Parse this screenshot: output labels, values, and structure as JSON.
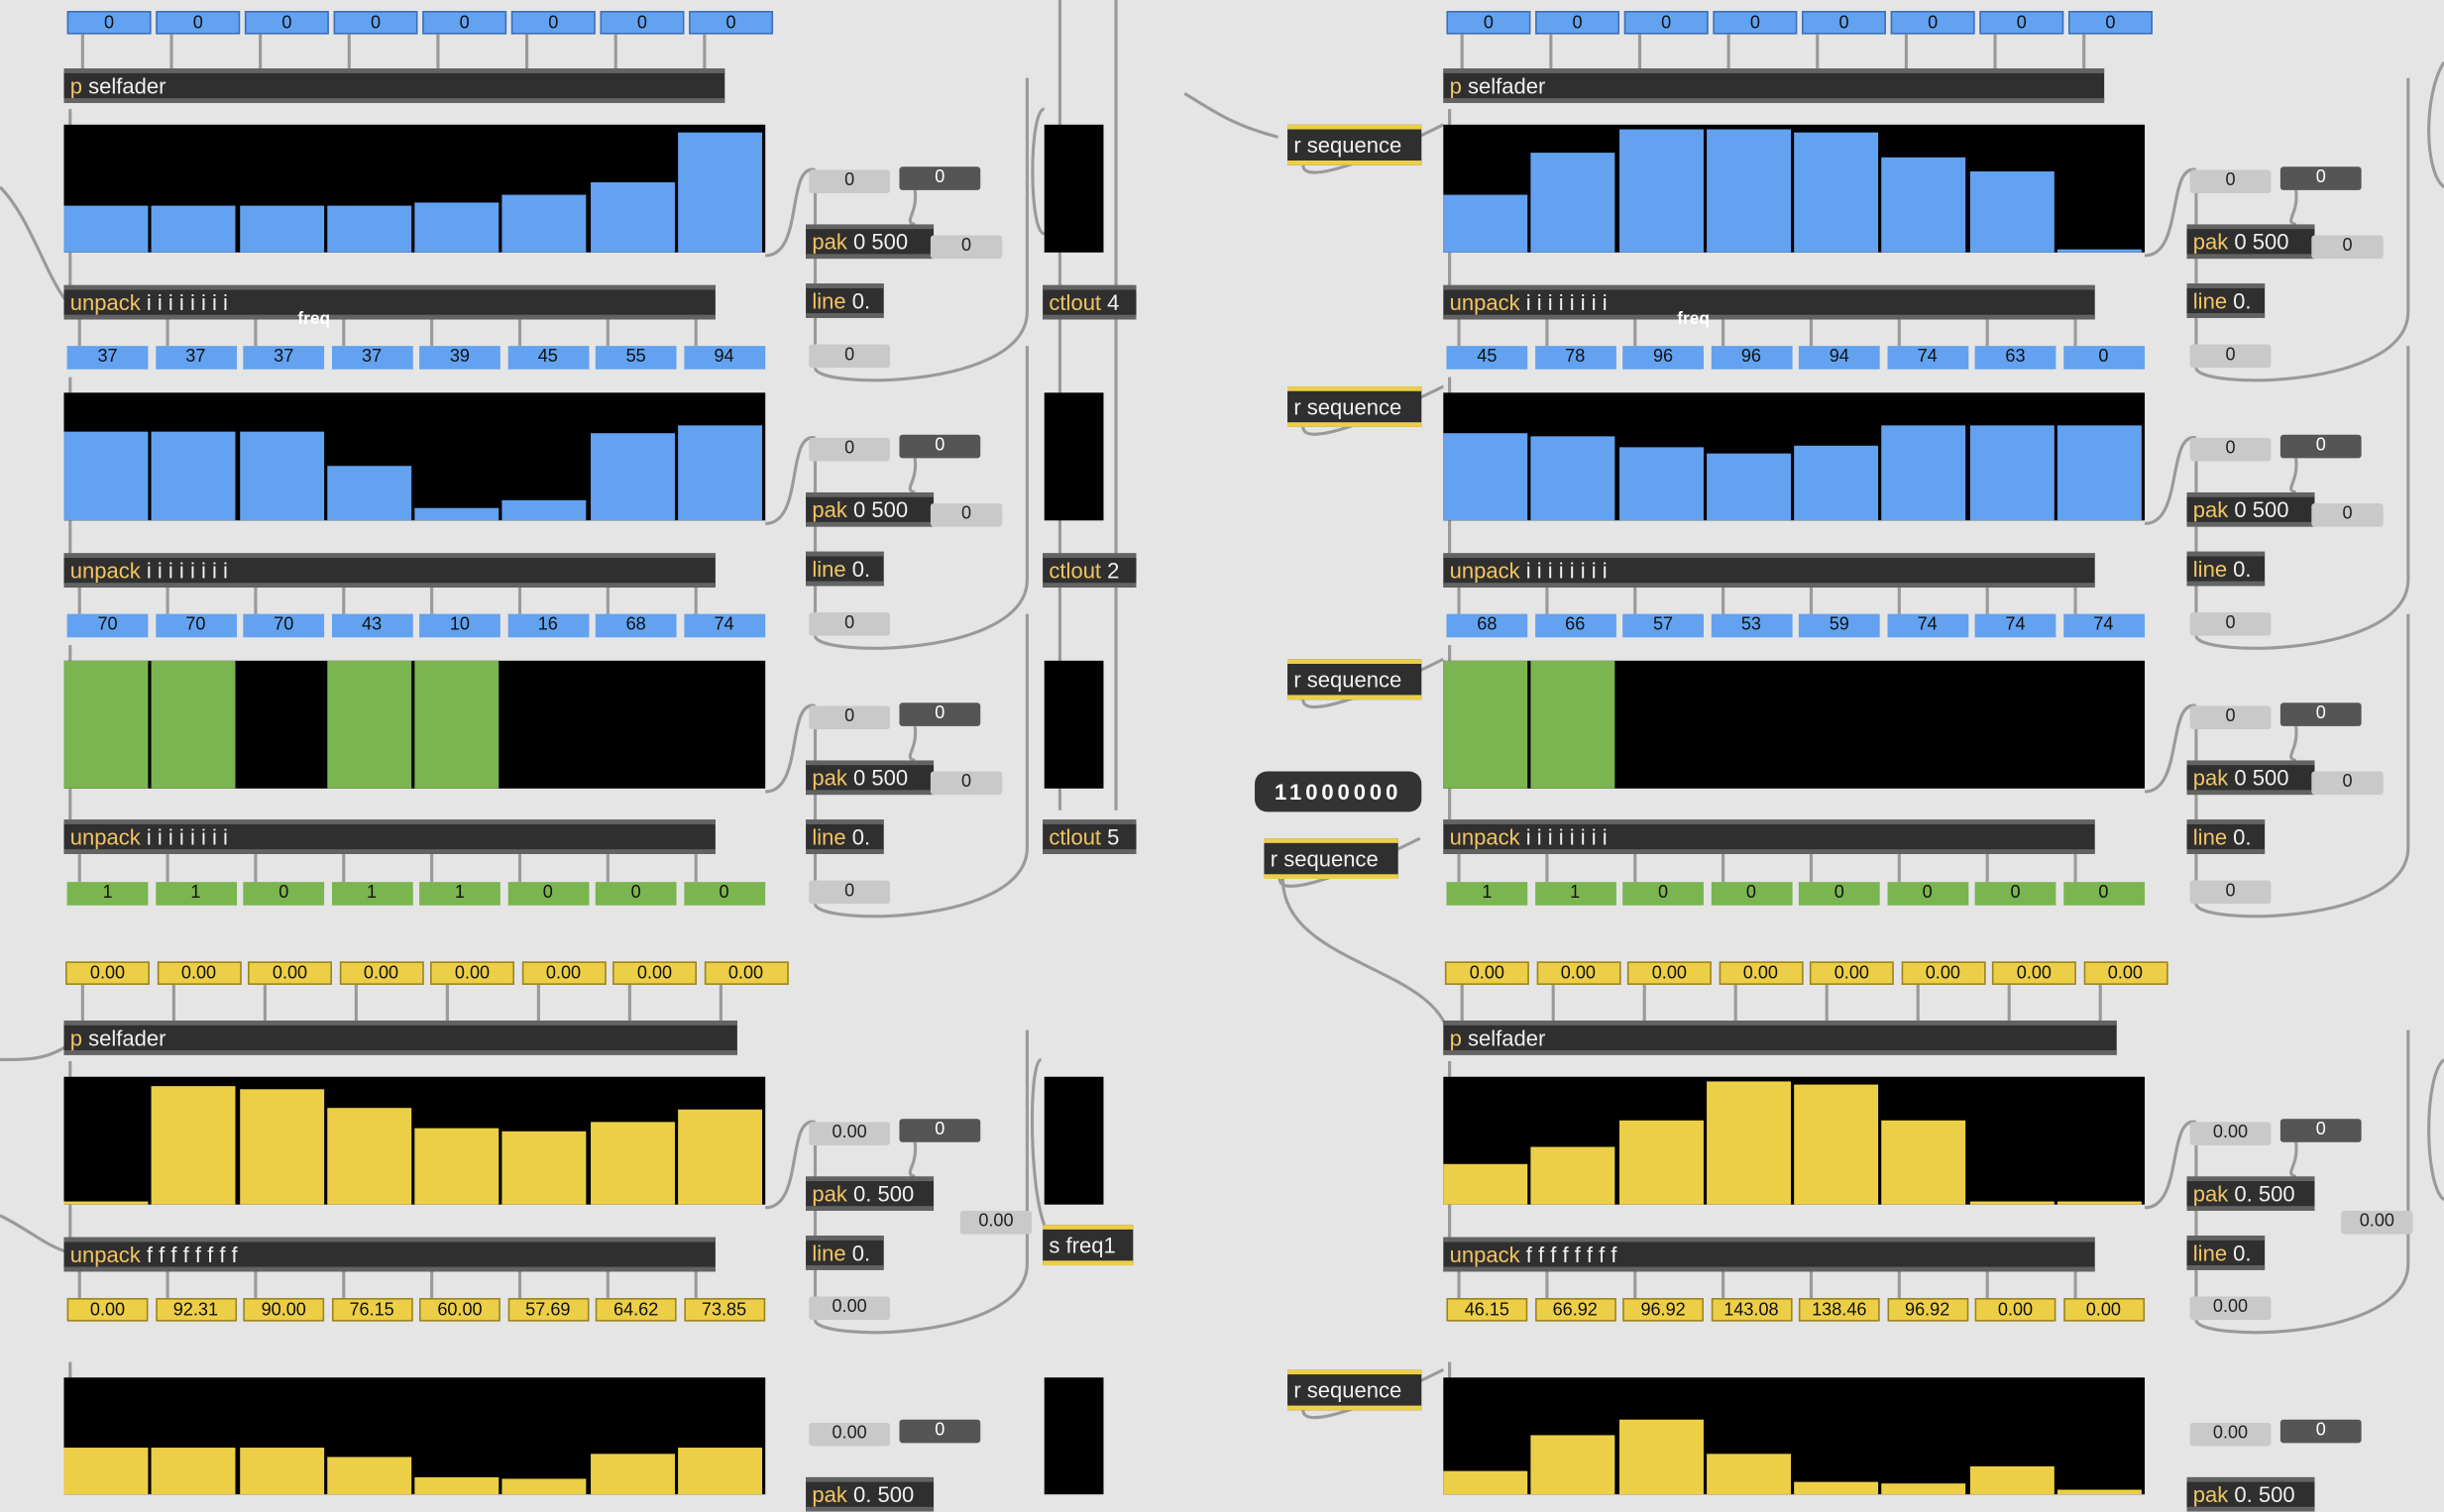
{
  "colors": {
    "blue": "#62a2f0",
    "green": "#7ab550",
    "yellow": "#eccf47",
    "background": "#e5e5e5",
    "object": "#2f2f2f"
  },
  "objects": {
    "selfader": "p selfader",
    "unpack_int": "unpack i i i i i i i i",
    "unpack_float": "unpack f f f f f f f f",
    "pak_int": "pak 0 500",
    "pak_float": "pak 0. 500",
    "line": "line 0.",
    "r_sequence": "r sequence",
    "ctlout_4": "ctlout 4",
    "ctlout_2": "ctlout 2",
    "ctlout_5": "ctlout 5",
    "s_freq1": "s freq1",
    "freq_label": "freq"
  },
  "message": "11000000",
  "left": {
    "top_numbers": [
      "0",
      "0",
      "0",
      "0",
      "0",
      "0",
      "0",
      "0"
    ],
    "row1": {
      "bars": [
        37,
        37,
        37,
        37,
        39,
        45,
        55,
        94
      ],
      "labels": [
        "37",
        "37",
        "37",
        "37",
        "39",
        "45",
        "55",
        "94"
      ],
      "aux_top": "0",
      "aux_dark": "0",
      "aux_side": "0",
      "aux_bottom": "0"
    },
    "row2": {
      "bars": [
        70,
        70,
        70,
        43,
        10,
        16,
        68,
        74
      ],
      "labels": [
        "70",
        "70",
        "70",
        "43",
        "10",
        "16",
        "68",
        "74"
      ],
      "aux_top": "0",
      "aux_dark": "0",
      "aux_side": "0",
      "aux_bottom": "0"
    },
    "row3": {
      "bars": [
        1,
        1,
        0,
        1,
        1,
        0,
        0,
        0
      ],
      "labels": [
        "1",
        "1",
        "0",
        "1",
        "1",
        "0",
        "0",
        "0"
      ],
      "aux_top": "0",
      "aux_dark": "0",
      "aux_side": "0",
      "aux_bottom": "0"
    },
    "yellow_top": [
      "0.00",
      "0.00",
      "0.00",
      "0.00",
      "0.00",
      "0.00",
      "0.00",
      "0.00"
    ],
    "row4": {
      "bars": [
        0.0,
        92.31,
        90.0,
        76.15,
        60.0,
        57.69,
        64.62,
        73.85
      ],
      "labels": [
        "0.00",
        "92.31",
        "90.00",
        "76.15",
        "60.00",
        "57.69",
        "64.62",
        "73.85"
      ],
      "aux_top": "0.00",
      "aux_dark": "0",
      "aux_side": "0.00",
      "aux_bottom": "0.00"
    },
    "row5": {
      "bars": [
        37,
        37,
        37,
        29,
        14,
        12,
        32,
        37
      ],
      "aux_top": "0.00",
      "aux_dark": "0"
    }
  },
  "right": {
    "top_numbers": [
      "0",
      "0",
      "0",
      "0",
      "0",
      "0",
      "0",
      "0"
    ],
    "row1": {
      "bars": [
        45,
        78,
        96,
        96,
        94,
        74,
        63,
        0
      ],
      "labels": [
        "45",
        "78",
        "96",
        "96",
        "94",
        "74",
        "63",
        "0"
      ],
      "aux_top": "0",
      "aux_dark": "0",
      "aux_side": "0",
      "aux_bottom": "0"
    },
    "row2": {
      "bars": [
        68,
        66,
        57,
        53,
        59,
        74,
        74,
        74
      ],
      "labels": [
        "68",
        "66",
        "57",
        "53",
        "59",
        "74",
        "74",
        "74"
      ],
      "aux_top": "0",
      "aux_dark": "0",
      "aux_side": "0",
      "aux_bottom": "0"
    },
    "row3": {
      "bars": [
        1,
        1,
        0,
        0,
        0,
        0,
        0,
        0
      ],
      "labels": [
        "1",
        "1",
        "0",
        "0",
        "0",
        "0",
        "0",
        "0"
      ],
      "aux_top": "0",
      "aux_dark": "0",
      "aux_side": "0",
      "aux_bottom": "0"
    },
    "yellow_top": [
      "0.00",
      "0.00",
      "0.00",
      "0.00",
      "0.00",
      "0.00",
      "0.00",
      "0.00"
    ],
    "row4": {
      "bars": [
        46.15,
        66.92,
        96.92,
        143.08,
        138.46,
        96.92,
        0.0,
        0.0
      ],
      "labels": [
        "46.15",
        "66.92",
        "96.92",
        "143.08",
        "138.46",
        "96.92",
        "0.00",
        "0.00"
      ],
      "aux_top": "0.00",
      "aux_dark": "0",
      "aux_side": "0.00",
      "aux_bottom": "0.00"
    },
    "row5": {
      "bars": [
        18,
        46,
        58,
        32,
        10,
        8,
        22,
        4
      ],
      "aux_top": "0.00",
      "aux_dark": "0"
    }
  }
}
